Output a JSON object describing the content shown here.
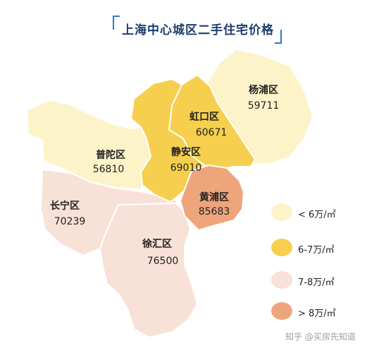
{
  "title": "上海中心城区二手住宅价格",
  "colors": {
    "lt6": "#fdf3c9",
    "r67": "#f6cf4e",
    "r78": "#f8e1d6",
    "gt8": "#eea57c",
    "border": "#ffffff",
    "title_bracket": "#2e78c7"
  },
  "districts": {
    "yangpu": {
      "name": "杨浦区",
      "price": "59711",
      "price_value": 59711,
      "category": "lt6"
    },
    "hongkou": {
      "name": "虹口区",
      "price": "60671",
      "price_value": 60671,
      "category": "r67"
    },
    "putuo": {
      "name": "普陀区",
      "price": "56810",
      "price_value": 56810,
      "category": "lt6"
    },
    "jingan": {
      "name": "静安区",
      "price": "69010",
      "price_value": 69010,
      "category": "r67"
    },
    "huangpu": {
      "name": "黄浦区",
      "price": "85683",
      "price_value": 85683,
      "category": "gt8"
    },
    "changning": {
      "name": "长宁区",
      "price": "70239",
      "price_value": 70239,
      "category": "r78"
    },
    "xuhui": {
      "name": "徐汇区",
      "price": "76500",
      "price_value": 76500,
      "category": "r78"
    }
  },
  "legend": [
    {
      "label": "< 6万/㎡",
      "category": "lt6"
    },
    {
      "label": "6-7万/㎡",
      "category": "r67"
    },
    {
      "label": "7-8万/㎡",
      "category": "r78"
    },
    {
      "label": "> 8万/㎡",
      "category": "gt8"
    }
  ],
  "watermark": "知乎 @买房先知道"
}
